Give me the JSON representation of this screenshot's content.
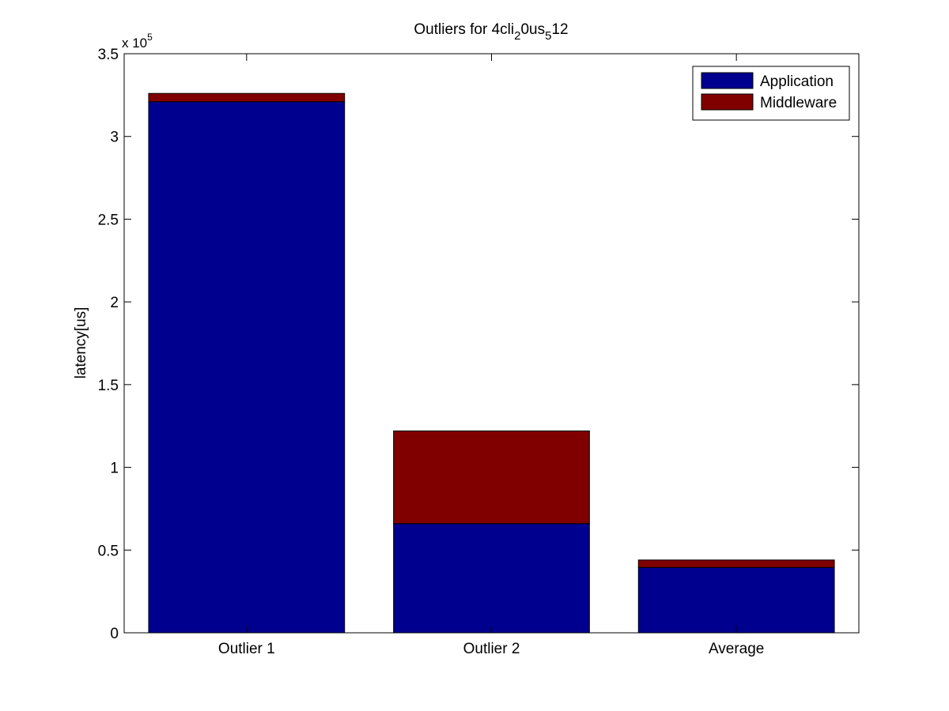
{
  "chart_data": {
    "type": "bar",
    "stacked": true,
    "title": {
      "parts": [
        {
          "text": "Outliers for 4cli",
          "sub": false
        },
        {
          "text": "2",
          "sub": true
        },
        {
          "text": "0us",
          "sub": false
        },
        {
          "text": "5",
          "sub": true
        },
        {
          "text": "12",
          "sub": false
        }
      ]
    },
    "ylabel": "latency[us]",
    "xlabel": "",
    "y_multiplier": {
      "base": "x 10",
      "exponent": "5"
    },
    "ylim": [
      0,
      350000
    ],
    "yticks": [
      {
        "value": 0,
        "label": "0"
      },
      {
        "value": 50000,
        "label": "0.5"
      },
      {
        "value": 100000,
        "label": "1"
      },
      {
        "value": 150000,
        "label": "1.5"
      },
      {
        "value": 200000,
        "label": "2"
      },
      {
        "value": 250000,
        "label": "2.5"
      },
      {
        "value": 300000,
        "label": "3"
      },
      {
        "value": 350000,
        "label": "3.5"
      }
    ],
    "categories": [
      "Outlier 1",
      "Outlier 2",
      "Average"
    ],
    "series": [
      {
        "name": "Application",
        "color": "#00008F",
        "values": [
          321000,
          66000,
          39500
        ]
      },
      {
        "name": "Middleware",
        "color": "#800000",
        "values": [
          5000,
          56000,
          4500
        ]
      }
    ],
    "legend": {
      "position": "top-right"
    },
    "grid": false
  }
}
